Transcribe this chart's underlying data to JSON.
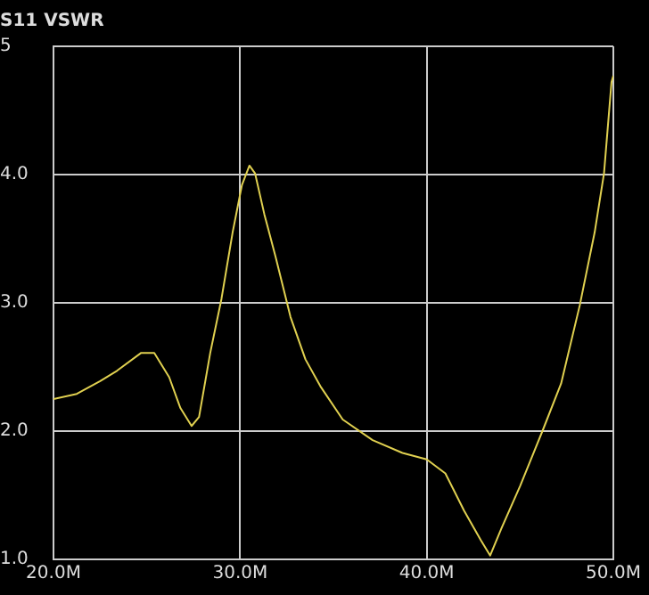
{
  "chart_data": {
    "type": "line",
    "title": "S11 VSWR",
    "series": [
      {
        "color": "#e0d050",
        "x": [
          20,
          21.25,
          22.5,
          23.4,
          24.7,
          25.4,
          26.2,
          26.8,
          27.4,
          27.8,
          28.4,
          29.0,
          29.6,
          30.1,
          30.5,
          30.8,
          31.3,
          31.9,
          32.7,
          33.5,
          34.3,
          35.5,
          37.1,
          38.7,
          40.0,
          41.0,
          42.0,
          42.9,
          43.4,
          44.0,
          45.0,
          46.2,
          47.2,
          48.2,
          49.0,
          49.5,
          49.9,
          50.0
        ],
        "values": [
          2.25,
          2.29,
          2.39,
          2.47,
          2.61,
          2.61,
          2.42,
          2.18,
          2.04,
          2.11,
          2.61,
          3.03,
          3.55,
          3.92,
          4.07,
          4.01,
          3.69,
          3.36,
          2.89,
          2.56,
          2.35,
          2.09,
          1.93,
          1.83,
          1.78,
          1.67,
          1.38,
          1.15,
          1.03,
          1.24,
          1.57,
          2.0,
          2.37,
          2.98,
          3.55,
          4.01,
          4.72,
          4.77
        ]
      }
    ],
    "xlim": [
      20,
      50
    ],
    "xticks": [
      {
        "value": 20,
        "label": "20.0M"
      },
      {
        "value": 30,
        "label": "30.0M"
      },
      {
        "value": 40,
        "label": "40.0M"
      },
      {
        "value": 50,
        "label": "50.0M"
      }
    ],
    "ylim": [
      1,
      5
    ],
    "yticks": [
      {
        "value": 1,
        "label": "1.0"
      },
      {
        "value": 2,
        "label": "2.0"
      },
      {
        "value": 3,
        "label": "3.0"
      },
      {
        "value": 4,
        "label": "4.0"
      },
      5
    ],
    "grid": true,
    "legend": false,
    "marker": "none",
    "line_style": "solid"
  }
}
